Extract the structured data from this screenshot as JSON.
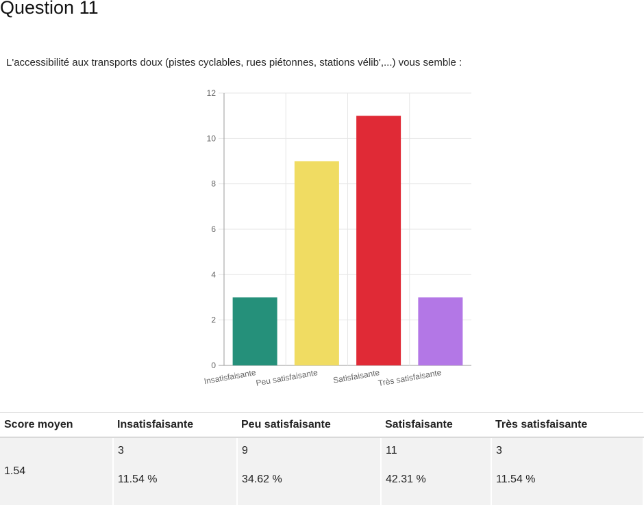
{
  "page": {
    "title": "Question 11",
    "question": "L'accessibilité aux transports doux (pistes cyclables, rues piétonnes, stations vélib',...) vous semble :"
  },
  "chart_data": {
    "type": "bar",
    "categories": [
      "Insatisfaisante",
      "Peu satisfaisante",
      "Satisfaisante",
      "Très satisfaisante"
    ],
    "values": [
      3,
      9,
      11,
      3
    ],
    "colors": [
      "#25907a",
      "#f0dc62",
      "#e02a36",
      "#b377e6"
    ],
    "ylim": [
      0,
      12
    ],
    "yticks": [
      0,
      2,
      4,
      6,
      8,
      10,
      12
    ],
    "grid": true,
    "legend": "none",
    "title": "",
    "xlabel": "",
    "ylabel": ""
  },
  "table": {
    "headers": [
      "Score moyen",
      "Insatisfaisante",
      "Peu satisfaisante",
      "Satisfaisante",
      "Très satisfaisante"
    ],
    "score": "1.54",
    "cells": [
      {
        "count": "3",
        "percent": "11.54 %"
      },
      {
        "count": "9",
        "percent": "34.62 %"
      },
      {
        "count": "11",
        "percent": "42.31 %"
      },
      {
        "count": "3",
        "percent": "11.54 %"
      }
    ]
  }
}
